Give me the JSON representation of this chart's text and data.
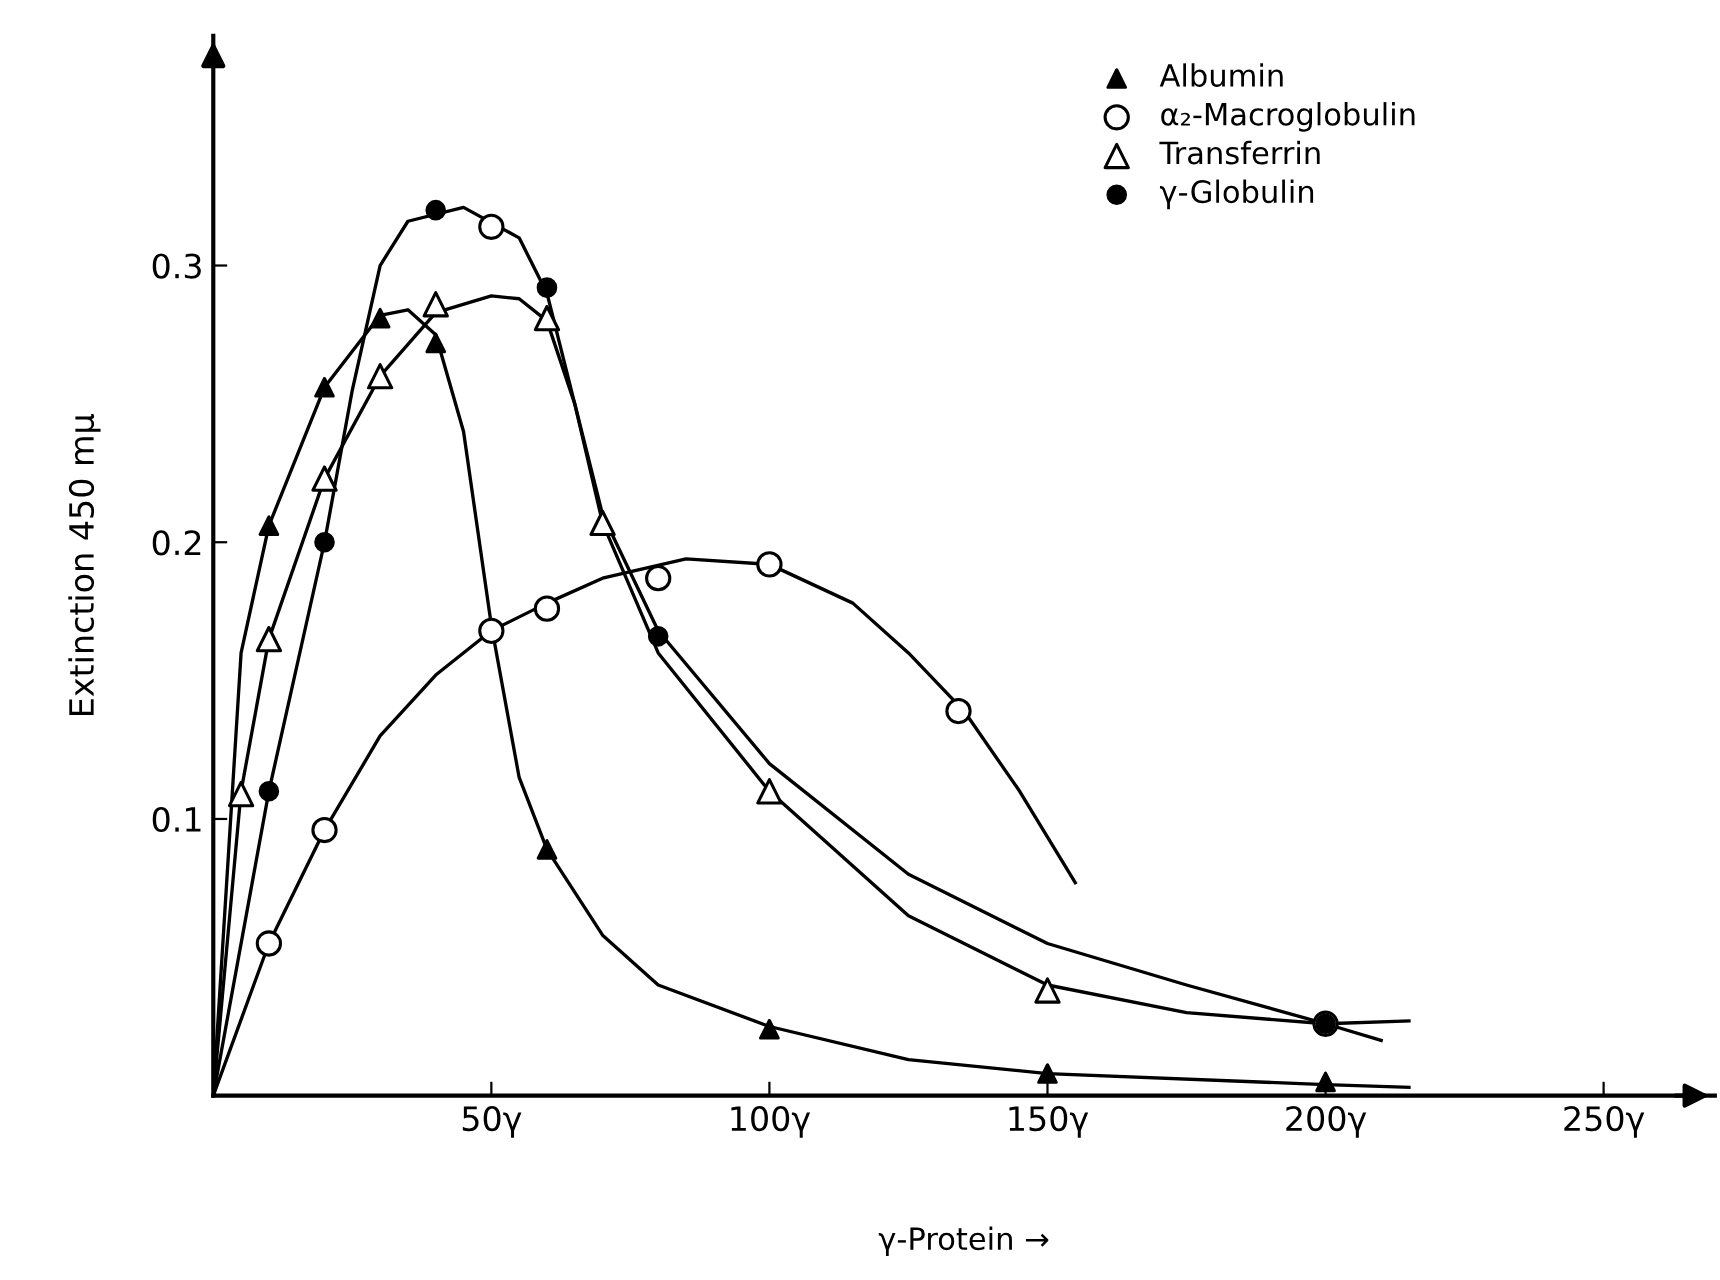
{
  "chart_data": {
    "type": "scatter",
    "xlabel": "γ-Protein →",
    "ylabel": "Extinction 450 mμ",
    "xlim": [
      0,
      270
    ],
    "ylim": [
      0,
      0.383
    ],
    "xticks": [
      {
        "value": 50,
        "label": "50γ"
      },
      {
        "value": 100,
        "label": "100γ"
      },
      {
        "value": 150,
        "label": "150γ"
      },
      {
        "value": 200,
        "label": "200γ"
      },
      {
        "value": 250,
        "label": "250γ"
      }
    ],
    "yticks": [
      0.1,
      0.2,
      0.3
    ],
    "grid": false,
    "legend": "top right",
    "series": [
      {
        "name": "Albumin",
        "marker": "triangle",
        "color": "#000000",
        "x": [
          10,
          20,
          30,
          40,
          60,
          100,
          150,
          200
        ],
        "values": [
          0.206,
          0.256,
          0.281,
          0.272,
          0.089,
          0.024,
          0.008,
          0.005
        ]
      },
      {
        "name": "α₂-Macroglobulin",
        "marker": "circle",
        "color": "#ffffff",
        "x": [
          10,
          20,
          50,
          50,
          60,
          80,
          100,
          134,
          200
        ],
        "values": [
          0.055,
          0.096,
          0.314,
          0.168,
          0.176,
          0.187,
          0.192,
          0.139,
          0.026
        ]
      },
      {
        "name": "Transferrin",
        "marker": "triangle",
        "color": "#ffffff",
        "x": [
          5,
          10,
          20,
          30,
          40,
          60,
          70,
          100,
          150
        ],
        "values": [
          0.109,
          0.165,
          0.223,
          0.26,
          0.286,
          0.281,
          0.207,
          0.11,
          0.038
        ]
      },
      {
        "name": "γ-Globulin",
        "marker": "circle",
        "color": "#000000",
        "x": [
          10,
          20,
          40,
          60,
          80,
          200
        ],
        "values": [
          0.11,
          0.2,
          0.32,
          0.292,
          0.166,
          0.026
        ]
      },
      {
        "type": "line",
        "marker": "none",
        "color": "#000000",
        "x": [
          0,
          5,
          10,
          20,
          30,
          35,
          40,
          45,
          50,
          55,
          60,
          70,
          80,
          100,
          125,
          150,
          200,
          215
        ],
        "values": [
          0,
          0.16,
          0.206,
          0.256,
          0.282,
          0.284,
          0.275,
          0.24,
          0.17,
          0.115,
          0.089,
          0.058,
          0.04,
          0.025,
          0.013,
          0.008,
          0.004,
          0.003
        ]
      },
      {
        "type": "line",
        "marker": "none",
        "color": "#000000",
        "x": [
          0,
          10,
          20,
          30,
          40,
          50,
          60,
          70,
          85,
          100,
          115,
          125,
          135,
          145,
          155
        ],
        "values": [
          0,
          0.055,
          0.096,
          0.13,
          0.152,
          0.168,
          0.178,
          0.187,
          0.194,
          0.192,
          0.178,
          0.16,
          0.139,
          0.11,
          0.077
        ]
      },
      {
        "type": "line",
        "marker": "none",
        "color": "#000000",
        "x": [
          0,
          5,
          10,
          20,
          30,
          40,
          50,
          55,
          60,
          65,
          70,
          80,
          100,
          125,
          150,
          175,
          200,
          215
        ],
        "values": [
          0,
          0.11,
          0.165,
          0.223,
          0.26,
          0.283,
          0.289,
          0.288,
          0.28,
          0.25,
          0.207,
          0.16,
          0.11,
          0.065,
          0.04,
          0.03,
          0.026,
          0.027
        ]
      },
      {
        "type": "line",
        "marker": "none",
        "color": "#000000",
        "x": [
          0,
          10,
          20,
          25,
          30,
          35,
          45,
          55,
          60,
          65,
          70,
          80,
          100,
          125,
          150,
          175,
          200,
          210
        ],
        "values": [
          0,
          0.11,
          0.2,
          0.255,
          0.3,
          0.316,
          0.321,
          0.31,
          0.29,
          0.25,
          0.21,
          0.168,
          0.12,
          0.08,
          0.055,
          0.04,
          0.026,
          0.02
        ]
      }
    ]
  }
}
